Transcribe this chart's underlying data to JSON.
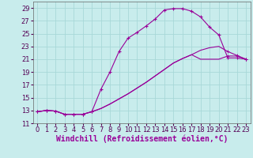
{
  "xlabel": "Windchill (Refroidissement éolien,°C)",
  "background_color": "#c8ecec",
  "grid_color": "#a8d8d8",
  "line_color": "#990099",
  "xlim": [
    -0.5,
    23.5
  ],
  "ylim": [
    11,
    30
  ],
  "xticks": [
    0,
    1,
    2,
    3,
    4,
    5,
    6,
    7,
    8,
    9,
    10,
    11,
    12,
    13,
    14,
    15,
    16,
    17,
    18,
    19,
    20,
    21,
    22,
    23
  ],
  "yticks": [
    11,
    13,
    15,
    17,
    19,
    21,
    23,
    25,
    27,
    29
  ],
  "series1_x": [
    0,
    1,
    2,
    3,
    4,
    5,
    6,
    7,
    8,
    9,
    10,
    11,
    12,
    13,
    14,
    15,
    16,
    17,
    18,
    19,
    20,
    21,
    22,
    23
  ],
  "series1_y": [
    12.8,
    13.0,
    12.9,
    12.4,
    12.4,
    12.4,
    12.8,
    16.3,
    19.0,
    22.2,
    24.3,
    25.2,
    26.2,
    27.3,
    28.7,
    28.9,
    28.9,
    28.5,
    27.6,
    26.0,
    24.8,
    21.2,
    21.2,
    21.0
  ],
  "series2_x": [
    0,
    1,
    2,
    3,
    4,
    5,
    6,
    7,
    8,
    9,
    10,
    11,
    12,
    13,
    14,
    15,
    16,
    17,
    18,
    19,
    20,
    21,
    22,
    23
  ],
  "series2_y": [
    12.8,
    13.0,
    12.9,
    12.4,
    12.4,
    12.4,
    12.8,
    13.3,
    14.0,
    14.8,
    15.6,
    16.5,
    17.4,
    18.4,
    19.4,
    20.4,
    21.1,
    21.7,
    22.4,
    22.8,
    23.0,
    22.2,
    21.6,
    21.0
  ],
  "series3_x": [
    0,
    1,
    2,
    3,
    4,
    5,
    6,
    7,
    8,
    9,
    10,
    11,
    12,
    13,
    14,
    15,
    16,
    17,
    18,
    19,
    20,
    21,
    22,
    23
  ],
  "series3_y": [
    12.8,
    13.0,
    12.9,
    12.4,
    12.4,
    12.4,
    12.8,
    13.3,
    14.0,
    14.8,
    15.6,
    16.5,
    17.4,
    18.4,
    19.4,
    20.4,
    21.1,
    21.7,
    21.0,
    21.0,
    21.0,
    21.5,
    21.5,
    21.0
  ],
  "tick_fontsize": 6,
  "xlabel_fontsize": 7,
  "marker": "D",
  "markersize": 2.5
}
